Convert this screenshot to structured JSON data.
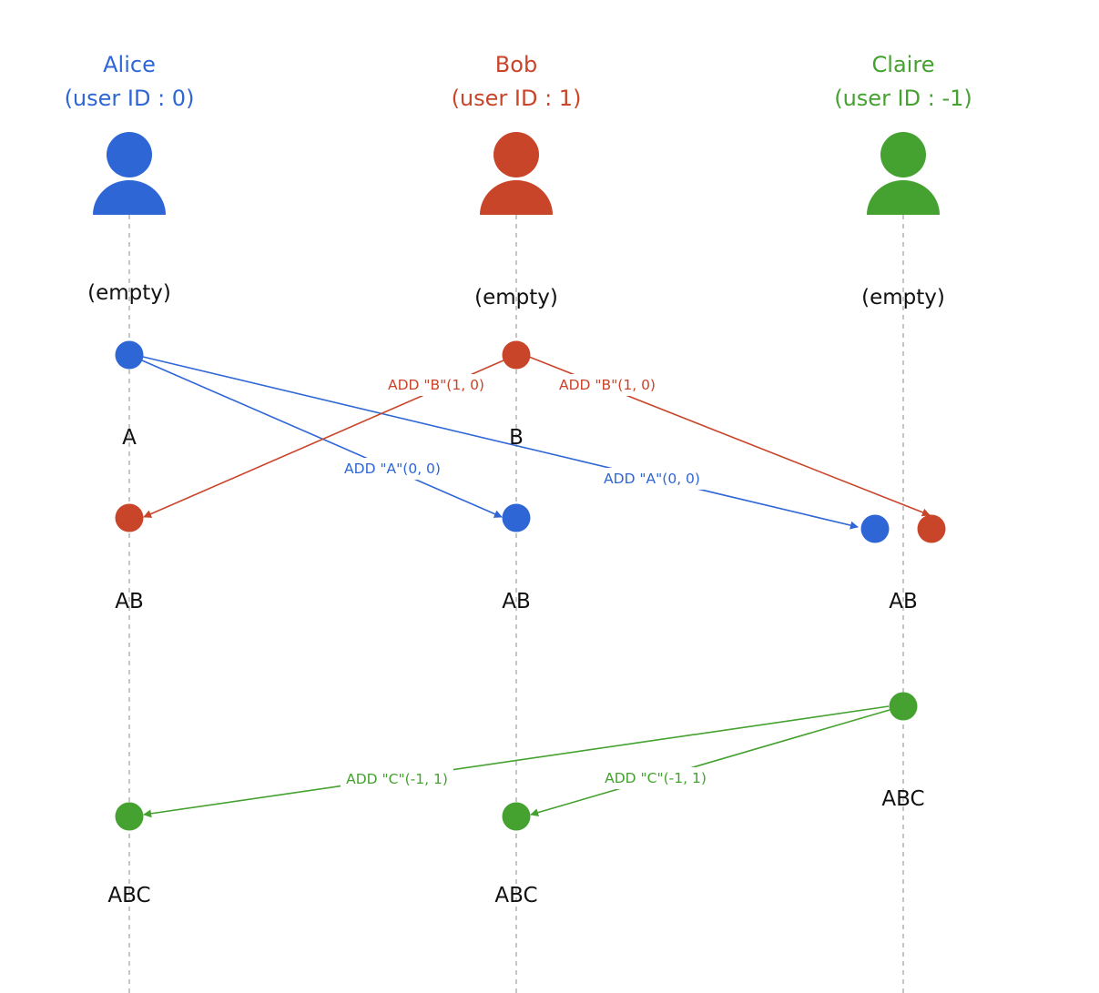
{
  "users": [
    {
      "id": "alice",
      "name": "Alice",
      "user_id_label": "(user ID : 0)",
      "color": "#2F66D6",
      "icon": "user-icon"
    },
    {
      "id": "bob",
      "name": "Bob",
      "user_id_label": "(user ID : 1)",
      "color": "#C8452A",
      "icon": "user-icon"
    },
    {
      "id": "claire",
      "name": "Claire",
      "user_id_label": "(user ID : -1)",
      "color": "#45A130",
      "icon": "user-icon"
    }
  ],
  "states": {
    "alice": [
      "(empty)",
      "A",
      "AB",
      "ABC"
    ],
    "bob": [
      "(empty)",
      "B",
      "AB",
      "ABC"
    ],
    "claire": [
      "(empty)",
      "AB",
      "ABC"
    ]
  },
  "events": [
    {
      "id": "alice-add-a",
      "user": "alice",
      "color": "#2F66D6"
    },
    {
      "id": "bob-add-b",
      "user": "bob",
      "color": "#C8452A"
    },
    {
      "id": "alice-recv-b",
      "user": "alice",
      "color": "#C8452A"
    },
    {
      "id": "bob-recv-a",
      "user": "bob",
      "color": "#2F66D6"
    },
    {
      "id": "claire-recv-a",
      "user": "claire",
      "color": "#2F66D6"
    },
    {
      "id": "claire-recv-b",
      "user": "claire",
      "color": "#C8452A"
    },
    {
      "id": "claire-add-c",
      "user": "claire",
      "color": "#45A130"
    },
    {
      "id": "alice-recv-c",
      "user": "alice",
      "color": "#45A130"
    },
    {
      "id": "bob-recv-c",
      "user": "bob",
      "color": "#45A130"
    }
  ],
  "messages": [
    {
      "id": "a-to-bob",
      "from": "alice-add-a",
      "to": "bob-recv-a",
      "label": "ADD \"A\"(0, 0)",
      "color": "#2F66D6"
    },
    {
      "id": "a-to-claire",
      "from": "alice-add-a",
      "to": "claire-recv-a",
      "label": "ADD \"A\"(0, 0)",
      "color": "#2F66D6"
    },
    {
      "id": "b-to-alice",
      "from": "bob-add-b",
      "to": "alice-recv-b",
      "label": "ADD \"B\"(1, 0)",
      "color": "#C8452A"
    },
    {
      "id": "b-to-claire",
      "from": "bob-add-b",
      "to": "claire-recv-b",
      "label": "ADD \"B\"(1, 0)",
      "color": "#C8452A"
    },
    {
      "id": "c-to-alice",
      "from": "claire-add-c",
      "to": "alice-recv-c",
      "label": "ADD \"C\"(-1, 1)",
      "color": "#45A130"
    },
    {
      "id": "c-to-bob",
      "from": "claire-add-c",
      "to": "bob-recv-c",
      "label": "ADD \"C\"(-1, 1)",
      "color": "#45A130"
    }
  ]
}
